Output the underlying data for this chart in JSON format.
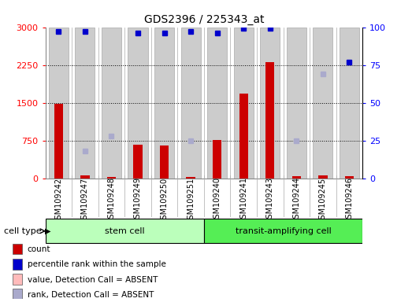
{
  "title": "GDS2396 / 225343_at",
  "samples": [
    "GSM109242",
    "GSM109247",
    "GSM109248",
    "GSM109249",
    "GSM109250",
    "GSM109251",
    "GSM109240",
    "GSM109241",
    "GSM109243",
    "GSM109244",
    "GSM109245",
    "GSM109246"
  ],
  "cell_types": [
    "stem cell",
    "stem cell",
    "stem cell",
    "stem cell",
    "stem cell",
    "stem cell",
    "transit-amplifying cell",
    "transit-amplifying cell",
    "transit-amplifying cell",
    "transit-amplifying cell",
    "transit-amplifying cell",
    "transit-amplifying cell"
  ],
  "count_values": [
    1470,
    50,
    30,
    660,
    650,
    30,
    760,
    1680,
    2310,
    40,
    50,
    40
  ],
  "percentile_values": [
    97,
    97,
    null,
    96,
    96,
    97,
    96,
    99,
    99,
    null,
    null,
    77
  ],
  "rank_absent": [
    null,
    18,
    28,
    null,
    null,
    25,
    null,
    null,
    null,
    25,
    69,
    null
  ],
  "ylim_left": [
    0,
    3000
  ],
  "ylim_right": [
    0,
    100
  ],
  "yticks_left": [
    0,
    750,
    1500,
    2250,
    3000
  ],
  "yticks_right": [
    0,
    25,
    50,
    75,
    100
  ],
  "count_color": "#cc0000",
  "percentile_color": "#0000cc",
  "rank_absent_color": "#aaaacc",
  "bar_bg_color": "#cccccc",
  "bar_edge_color": "#aaaaaa",
  "stem_cell_color": "#bbffbb",
  "transit_cell_color": "#55ee55",
  "legend_items": [
    {
      "label": "count",
      "color": "#cc0000"
    },
    {
      "label": "percentile rank within the sample",
      "color": "#0000cc"
    },
    {
      "label": "value, Detection Call = ABSENT",
      "color": "#ffbbbb"
    },
    {
      "label": "rank, Detection Call = ABSENT",
      "color": "#aaaacc"
    }
  ]
}
